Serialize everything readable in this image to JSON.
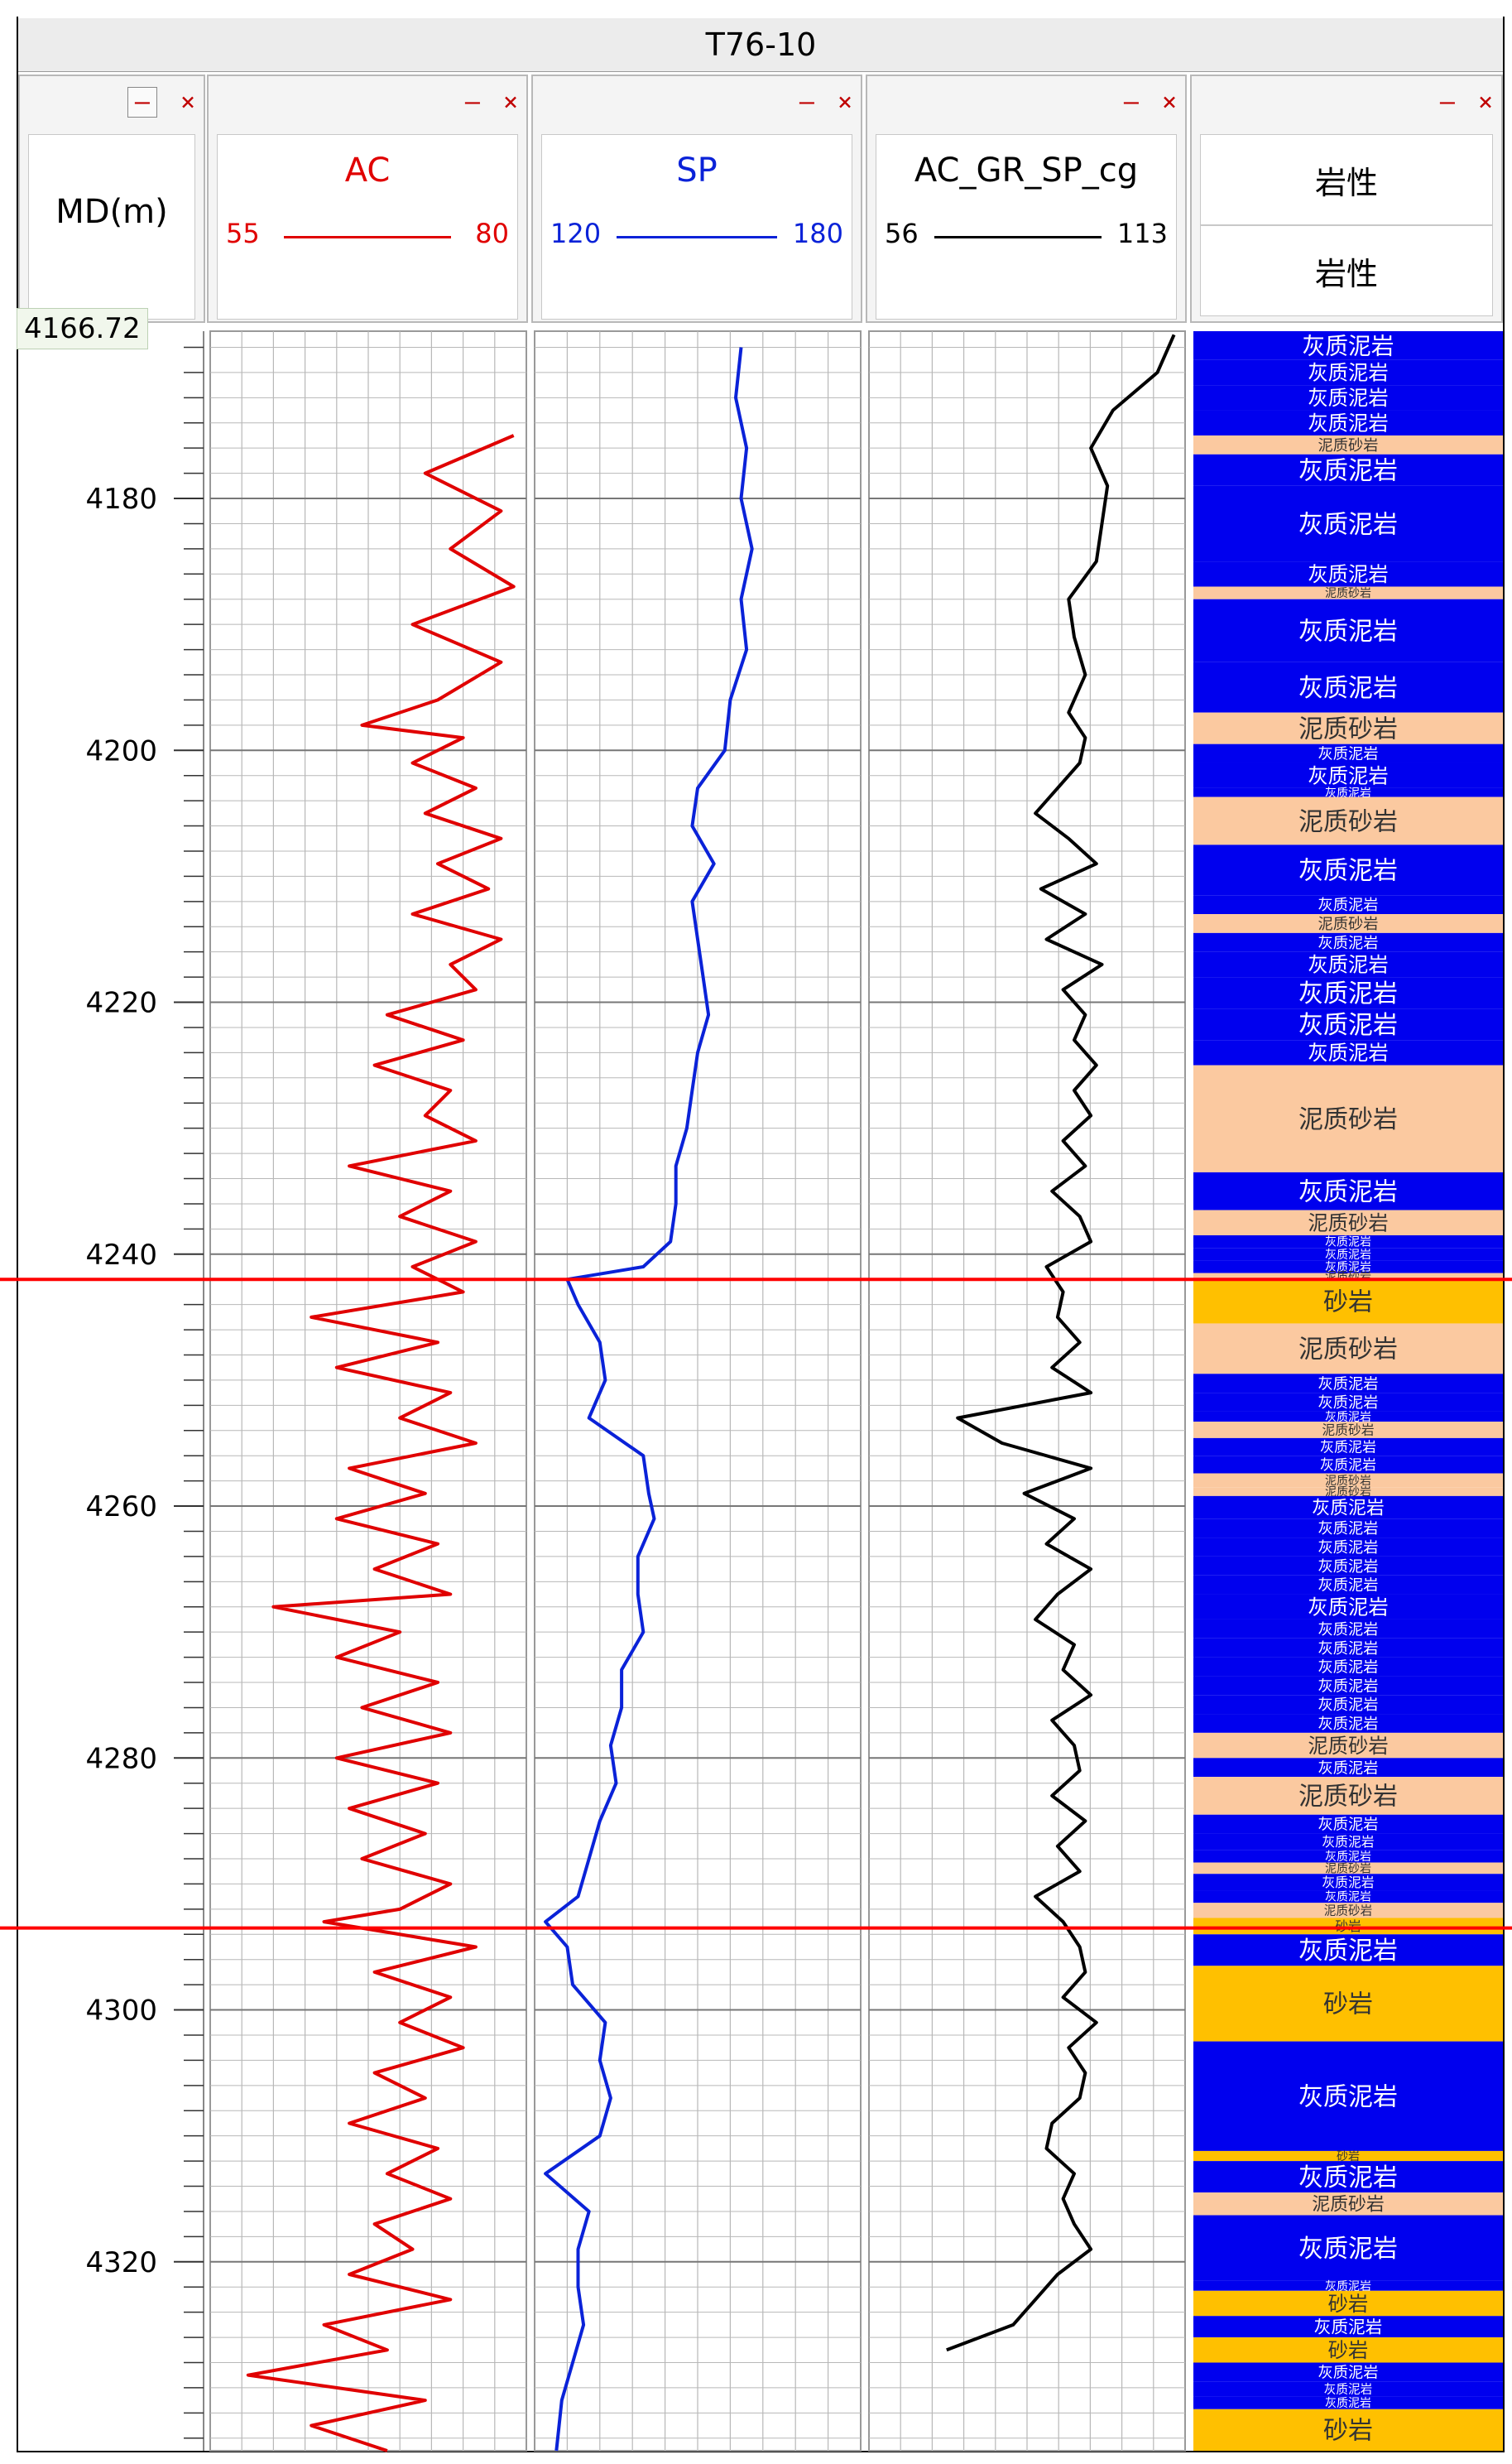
{
  "window": {
    "title": "T76-10"
  },
  "controls": {
    "minimize": "–",
    "close": "×"
  },
  "depth_track": {
    "header": "MD(m)",
    "readout": "4166.72"
  },
  "tracks": [
    {
      "name": "AC",
      "min": "55",
      "max": "80",
      "color": "#e00000"
    },
    {
      "name": "SP",
      "min": "120",
      "max": "180",
      "color": "#0a22d8"
    },
    {
      "name": "AC_GR_SP_cg",
      "min": "56",
      "max": "113",
      "color": "#000000"
    }
  ],
  "lithology_track": {
    "header_top": "岩性",
    "header_bottom": "岩性"
  },
  "colors": {
    "marker": "#ff0000",
    "grid": "#b8b8b8",
    "limestone_mud": "#0000ee",
    "muddy_sand": "#fbc9a0",
    "sandstone": "#ffc000"
  },
  "chart_data": {
    "type": "well_log",
    "depth_unit": "m",
    "depth_range": [
      4166.72,
      4335
    ],
    "depth_ticks": [
      4180,
      4200,
      4220,
      4240,
      4260,
      4280,
      4300,
      4320
    ],
    "markers": [
      4242,
      4293.5
    ],
    "series": [
      {
        "name": "AC",
        "xlim": [
          55,
          80
        ],
        "depth": [
          4175,
          4178,
          4181,
          4184,
          4187,
          4190,
          4193,
          4196,
          4198,
          4199,
          4201,
          4203,
          4205,
          4207,
          4209,
          4211,
          4213,
          4215,
          4217,
          4219,
          4221,
          4223,
          4225,
          4227,
          4229,
          4231,
          4233,
          4235,
          4237,
          4239,
          4241,
          4243,
          4245,
          4247,
          4249,
          4251,
          4253,
          4255,
          4257,
          4259,
          4261,
          4263,
          4265,
          4267,
          4268,
          4270,
          4272,
          4274,
          4276,
          4278,
          4280,
          4282,
          4284,
          4286,
          4288,
          4290,
          4292,
          4293,
          4295,
          4297,
          4299,
          4301,
          4303,
          4305,
          4307,
          4309,
          4311,
          4313,
          4315,
          4317,
          4319,
          4321,
          4323,
          4325,
          4327,
          4329,
          4331,
          4333,
          4335
        ],
        "values": [
          79,
          72,
          78,
          74,
          79,
          71,
          78,
          73,
          67,
          75,
          71,
          76,
          72,
          78,
          73,
          77,
          71,
          78,
          74,
          76,
          69,
          75,
          68,
          74,
          72,
          76,
          66,
          74,
          70,
          76,
          71,
          75,
          63,
          73,
          65,
          74,
          70,
          76,
          66,
          72,
          65,
          73,
          68,
          74,
          60,
          70,
          65,
          73,
          67,
          74,
          65,
          73,
          66,
          72,
          67,
          74,
          70,
          64,
          76,
          68,
          74,
          70,
          75,
          68,
          72,
          66,
          73,
          69,
          74,
          68,
          71,
          66,
          74,
          64,
          69,
          58,
          72,
          63,
          69
        ]
      },
      {
        "name": "SP",
        "xlim": [
          120,
          180
        ],
        "depth": [
          4168,
          4172,
          4176,
          4180,
          4184,
          4188,
          4192,
          4196,
          4200,
          4203,
          4206,
          4209,
          4212,
          4215,
          4218,
          4221,
          4224,
          4227,
          4230,
          4233,
          4236,
          4239,
          4241,
          4242,
          4244,
          4247,
          4250,
          4253,
          4256,
          4259,
          4261,
          4264,
          4267,
          4270,
          4273,
          4276,
          4279,
          4282,
          4285,
          4288,
          4291,
          4293,
          4295,
          4298,
          4301,
          4304,
          4307,
          4310,
          4313,
          4316,
          4319,
          4322,
          4325,
          4328,
          4331,
          4335
        ],
        "values": [
          158,
          157,
          159,
          158,
          160,
          158,
          159,
          156,
          155,
          150,
          149,
          153,
          149,
          150,
          151,
          152,
          150,
          149,
          148,
          146,
          146,
          145,
          140,
          126,
          128,
          132,
          133,
          130,
          140,
          141,
          142,
          139,
          139,
          140,
          136,
          136,
          134,
          135,
          132,
          130,
          128,
          122,
          126,
          127,
          133,
          132,
          134,
          132,
          122,
          130,
          128,
          128,
          129,
          127,
          125,
          124
        ]
      },
      {
        "name": "AC_GR_SP_cg",
        "xlim": [
          56,
          113
        ],
        "depth": [
          4167,
          4170,
          4173,
          4176,
          4179,
          4182,
          4185,
          4188,
          4191,
          4194,
          4197,
          4199,
          4201,
          4203,
          4205,
          4207,
          4209,
          4211,
          4213,
          4215,
          4217,
          4219,
          4221,
          4223,
          4225,
          4227,
          4229,
          4231,
          4233,
          4235,
          4237,
          4239,
          4241,
          4243,
          4245,
          4247,
          4249,
          4251,
          4253,
          4255,
          4257,
          4259,
          4261,
          4263,
          4265,
          4267,
          4269,
          4271,
          4273,
          4275,
          4277,
          4279,
          4281,
          4283,
          4285,
          4287,
          4289,
          4291,
          4293,
          4295,
          4297,
          4299,
          4301,
          4303,
          4305,
          4307,
          4309,
          4311,
          4313,
          4315,
          4317,
          4319,
          4321,
          4323,
          4325,
          4327
        ],
        "values": [
          111,
          108,
          100,
          96,
          99,
          98,
          97,
          92,
          93,
          95,
          92,
          95,
          94,
          90,
          86,
          92,
          97,
          87,
          95,
          88,
          98,
          91,
          95,
          93,
          97,
          93,
          96,
          91,
          95,
          89,
          94,
          96,
          88,
          91,
          90,
          94,
          89,
          96,
          72,
          80,
          96,
          84,
          93,
          88,
          96,
          90,
          86,
          93,
          91,
          96,
          89,
          93,
          94,
          89,
          95,
          90,
          94,
          86,
          91,
          94,
          95,
          91,
          97,
          92,
          95,
          94,
          89,
          88,
          93,
          91,
          93,
          96,
          90,
          86,
          82,
          70
        ]
      }
    ],
    "lithology": [
      [
        4166.72,
        4169,
        "灰质泥岩",
        "limestone_mud"
      ],
      [
        4169,
        4171,
        "灰质泥岩",
        "limestone_mud"
      ],
      [
        4171,
        4173,
        "灰质泥岩",
        "limestone_mud"
      ],
      [
        4173,
        4175,
        "灰质泥岩",
        "limestone_mud"
      ],
      [
        4175,
        4176.5,
        "泥质砂岩",
        "muddy_sand"
      ],
      [
        4176.5,
        4179,
        "灰质泥岩",
        "limestone_mud"
      ],
      [
        4179,
        4185,
        "灰质泥岩",
        "limestone_mud"
      ],
      [
        4185,
        4187,
        "灰质泥岩",
        "limestone_mud"
      ],
      [
        4187,
        4188,
        "泥质砂岩",
        "muddy_sand"
      ],
      [
        4188,
        4193,
        "灰质泥岩",
        "limestone_mud"
      ],
      [
        4193,
        4197,
        "灰质泥岩",
        "limestone_mud"
      ],
      [
        4197,
        4199.5,
        "泥质砂岩",
        "muddy_sand"
      ],
      [
        4199.5,
        4201,
        "灰质泥岩",
        "limestone_mud"
      ],
      [
        4201,
        4203,
        "灰质泥岩",
        "limestone_mud"
      ],
      [
        4203,
        4203.7,
        "灰质泥岩",
        "limestone_mud"
      ],
      [
        4203.7,
        4207.5,
        "泥质砂岩",
        "muddy_sand"
      ],
      [
        4207.5,
        4211.5,
        "灰质泥岩",
        "limestone_mud"
      ],
      [
        4211.5,
        4213,
        "灰质泥岩",
        "limestone_mud"
      ],
      [
        4213,
        4214.5,
        "泥质砂岩",
        "muddy_sand"
      ],
      [
        4214.5,
        4216,
        "灰质泥岩",
        "limestone_mud"
      ],
      [
        4216,
        4218,
        "灰质泥岩",
        "limestone_mud"
      ],
      [
        4218,
        4220.5,
        "灰质泥岩",
        "limestone_mud"
      ],
      [
        4220.5,
        4223,
        "灰质泥岩",
        "limestone_mud"
      ],
      [
        4223,
        4225,
        "灰质泥岩",
        "limestone_mud"
      ],
      [
        4225,
        4233.5,
        "泥质砂岩",
        "muddy_sand"
      ],
      [
        4233.5,
        4236.5,
        "灰质泥岩",
        "limestone_mud"
      ],
      [
        4236.5,
        4238.5,
        "泥质砂岩",
        "muddy_sand"
      ],
      [
        4238.5,
        4239.5,
        "灰质泥岩",
        "limestone_mud"
      ],
      [
        4239.5,
        4240.5,
        "灰质泥岩",
        "limestone_mud"
      ],
      [
        4240.5,
        4241.5,
        "灰质泥岩",
        "limestone_mud"
      ],
      [
        4241.5,
        4242,
        "泥质砂岩",
        "muddy_sand"
      ],
      [
        4242,
        4245.5,
        "砂岩",
        "sandstone"
      ],
      [
        4245.5,
        4249.5,
        "泥质砂岩",
        "muddy_sand"
      ],
      [
        4249.5,
        4251,
        "灰质泥岩",
        "limestone_mud"
      ],
      [
        4251,
        4252.5,
        "灰质泥岩",
        "limestone_mud"
      ],
      [
        4252.5,
        4253.3,
        "灰质泥岩",
        "limestone_mud"
      ],
      [
        4253.3,
        4254.6,
        "泥质砂岩",
        "muddy_sand"
      ],
      [
        4254.6,
        4256,
        "灰质泥岩",
        "limestone_mud"
      ],
      [
        4256,
        4257.4,
        "灰质泥岩",
        "limestone_mud"
      ],
      [
        4257.4,
        4258.5,
        "泥质砂岩",
        "muddy_sand"
      ],
      [
        4258.5,
        4259.2,
        "泥质砂岩",
        "muddy_sand"
      ],
      [
        4259.2,
        4261,
        "灰质泥岩",
        "limestone_mud"
      ],
      [
        4261,
        4262.5,
        "灰质泥岩",
        "limestone_mud"
      ],
      [
        4262.5,
        4264,
        "灰质泥岩",
        "limestone_mud"
      ],
      [
        4264,
        4265.5,
        "灰质泥岩",
        "limestone_mud"
      ],
      [
        4265.5,
        4267,
        "灰质泥岩",
        "limestone_mud"
      ],
      [
        4267,
        4269,
        "灰质泥岩",
        "limestone_mud"
      ],
      [
        4269,
        4270.5,
        "灰质泥岩",
        "limestone_mud"
      ],
      [
        4270.5,
        4272,
        "灰质泥岩",
        "limestone_mud"
      ],
      [
        4272,
        4273.5,
        "灰质泥岩",
        "limestone_mud"
      ],
      [
        4273.5,
        4275,
        "灰质泥岩",
        "limestone_mud"
      ],
      [
        4275,
        4276.5,
        "灰质泥岩",
        "limestone_mud"
      ],
      [
        4276.5,
        4278,
        "灰质泥岩",
        "limestone_mud"
      ],
      [
        4278,
        4280,
        "泥质砂岩",
        "muddy_sand"
      ],
      [
        4280,
        4281.5,
        "灰质泥岩",
        "limestone_mud"
      ],
      [
        4281.5,
        4284.5,
        "泥质砂岩",
        "muddy_sand"
      ],
      [
        4284.5,
        4286,
        "灰质泥岩",
        "limestone_mud"
      ],
      [
        4286,
        4287.3,
        "灰质泥岩",
        "limestone_mud"
      ],
      [
        4287.3,
        4288.3,
        "灰质泥岩",
        "limestone_mud"
      ],
      [
        4288.3,
        4289.2,
        "泥质砂岩",
        "muddy_sand"
      ],
      [
        4289.2,
        4290.5,
        "灰质泥岩",
        "limestone_mud"
      ],
      [
        4290.5,
        4291.5,
        "灰质泥岩",
        "limestone_mud"
      ],
      [
        4291.5,
        4292.7,
        "泥质砂岩",
        "muddy_sand"
      ],
      [
        4292.7,
        4294,
        "砂岩",
        "sandstone"
      ],
      [
        4294,
        4296.5,
        "灰质泥岩",
        "limestone_mud"
      ],
      [
        4296.5,
        4302.5,
        "砂岩",
        "sandstone"
      ],
      [
        4302.5,
        4311.2,
        "灰质泥岩",
        "limestone_mud"
      ],
      [
        4311.2,
        4312,
        "砂岩",
        "sandstone"
      ],
      [
        4312,
        4314.5,
        "灰质泥岩",
        "limestone_mud"
      ],
      [
        4314.5,
        4316.3,
        "泥质砂岩",
        "muddy_sand"
      ],
      [
        4316.3,
        4321.5,
        "灰质泥岩",
        "limestone_mud"
      ],
      [
        4321.5,
        4322.3,
        "灰质泥岩",
        "limestone_mud"
      ],
      [
        4322.3,
        4324.3,
        "砂岩",
        "sandstone"
      ],
      [
        4324.3,
        4326,
        "灰质泥岩",
        "limestone_mud"
      ],
      [
        4326,
        4328,
        "砂岩",
        "sandstone"
      ],
      [
        4328,
        4329.5,
        "灰质泥岩",
        "limestone_mud"
      ],
      [
        4329.5,
        4330.7,
        "灰质泥岩",
        "limestone_mud"
      ],
      [
        4330.7,
        4331.7,
        "灰质泥岩",
        "limestone_mud"
      ],
      [
        4331.7,
        4335,
        "砂岩",
        "sandstone"
      ]
    ]
  }
}
